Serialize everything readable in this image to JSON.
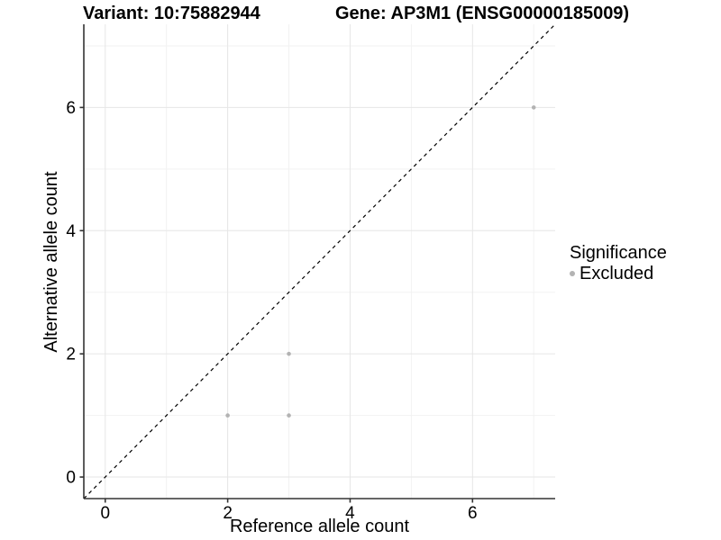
{
  "figure": {
    "title_left": "Variant: 10:75882944",
    "title_right": "Gene: AP3M1 (ENSG00000185009)"
  },
  "chart_data": {
    "type": "scatter",
    "xlabel": "Reference allele count",
    "ylabel": "Alternative allele count",
    "xlim": [
      -0.35,
      7.35
    ],
    "ylim": [
      -0.35,
      7.35
    ],
    "x_ticks": [
      0,
      2,
      4,
      6
    ],
    "y_ticks": [
      0,
      2,
      4,
      6
    ],
    "x_minor_gridlines": [
      1,
      3,
      5,
      7
    ],
    "y_minor_gridlines": [
      1,
      3,
      5,
      7
    ],
    "grid": "major-and-minor",
    "reference_line": {
      "type": "identity-diagonal",
      "equation": "y = x",
      "style": "dashed",
      "color": "#000000"
    },
    "series": [
      {
        "name": "Excluded",
        "color": "#b3b3b3",
        "marker": "circle",
        "points": [
          [
            2,
            1
          ],
          [
            3,
            1
          ],
          [
            3,
            2
          ],
          [
            7,
            6
          ]
        ]
      }
    ],
    "legend": {
      "title": "Significance",
      "position": "right",
      "entries": [
        {
          "label": "Excluded",
          "color": "#b3b3b3"
        }
      ]
    }
  },
  "colors": {
    "background": "#ffffff",
    "axis_line": "#333333",
    "tick_mark": "#333333",
    "grid_major": "#e6e6e6",
    "grid_minor": "#f2f2f2",
    "text": "#000000",
    "point": "#b3b3b3"
  }
}
